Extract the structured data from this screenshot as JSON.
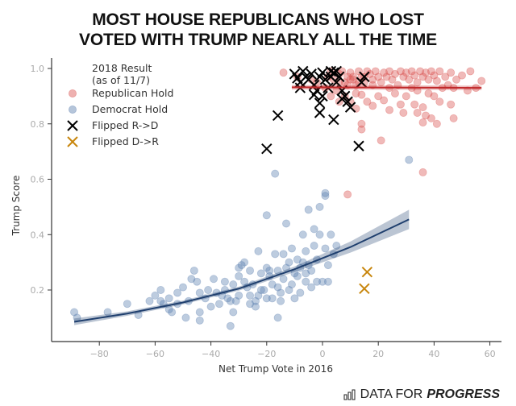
{
  "chart_data": {
    "type": "scatter",
    "title": "MOST HOUSE REPUBLICANS WHO LOST VOTED WITH TRUMP NEARLY ALL THE TIME",
    "title_lines": [
      "MOST HOUSE REPUBLICANS WHO LOST",
      "VOTED WITH TRUMP NEARLY ALL THE TIME"
    ],
    "xlabel": "Net Trump Vote in 2016",
    "ylabel": "Trump Score",
    "xlim": [
      -97,
      67
    ],
    "ylim": [
      0.015,
      1.03
    ],
    "x_ticks": [
      -80,
      -60,
      -40,
      -20,
      0,
      20,
      40,
      60
    ],
    "x_tick_labels": [
      "−80",
      "−60",
      "−40",
      "−20",
      "0",
      "20",
      "40",
      "60"
    ],
    "y_ticks": [
      0.2,
      0.4,
      0.6,
      0.8,
      1.0
    ],
    "y_tick_labels": [
      "0.2",
      "0.4",
      "0.6",
      "0.8",
      "1.0"
    ],
    "grid": false,
    "legend": {
      "placement": "top-left",
      "title_lines": [
        "2018 Result",
        "(as of 11/7)"
      ],
      "entries": [
        {
          "label": "Republican Hold",
          "marker": "circle",
          "color": "#d9534f"
        },
        {
          "label": "Democrat Hold",
          "marker": "circle",
          "color": "#5b7fae"
        },
        {
          "label": "Flipped R->D",
          "marker": "x",
          "color": "#000000"
        },
        {
          "label": "Flipped D->R",
          "marker": "x",
          "color": "#c8860d"
        }
      ]
    },
    "series": [
      {
        "name": "Republican Hold",
        "marker": "circle",
        "color": "#d9534f",
        "points": [
          [
            -14,
            0.985
          ],
          [
            -9,
            0.97
          ],
          [
            -4,
            0.96
          ],
          [
            -2,
            0.95
          ],
          [
            1,
            0.93
          ],
          [
            2,
            0.97
          ],
          [
            3,
            0.99
          ],
          [
            4,
            0.96
          ],
          [
            5,
            0.92
          ],
          [
            6,
            0.98
          ],
          [
            7,
            0.99
          ],
          [
            8,
            0.95
          ],
          [
            9,
            0.97
          ],
          [
            10,
            0.985
          ],
          [
            11,
            0.96
          ],
          [
            12,
            0.94
          ],
          [
            13,
            0.99
          ],
          [
            14,
            0.97
          ],
          [
            15,
            0.95
          ],
          [
            16,
            0.99
          ],
          [
            17,
            0.98
          ],
          [
            18,
            0.96
          ],
          [
            19,
            0.99
          ],
          [
            20,
            0.97
          ],
          [
            21,
            0.95
          ],
          [
            22,
            0.985
          ],
          [
            23,
            0.97
          ],
          [
            24,
            0.99
          ],
          [
            25,
            0.96
          ],
          [
            26,
            0.98
          ],
          [
            27,
            0.94
          ],
          [
            28,
            0.99
          ],
          [
            29,
            0.97
          ],
          [
            30,
            0.985
          ],
          [
            31,
            0.96
          ],
          [
            32,
            0.99
          ],
          [
            33,
            0.975
          ],
          [
            34,
            0.95
          ],
          [
            35,
            0.99
          ],
          [
            36,
            0.97
          ],
          [
            37,
            0.985
          ],
          [
            38,
            0.96
          ],
          [
            39,
            0.99
          ],
          [
            40,
            0.975
          ],
          [
            41,
            0.955
          ],
          [
            42,
            0.99
          ],
          [
            44,
            0.97
          ],
          [
            46,
            0.985
          ],
          [
            48,
            0.96
          ],
          [
            50,
            0.975
          ],
          [
            53,
            0.99
          ],
          [
            57,
            0.955
          ],
          [
            45,
            0.94
          ],
          [
            43,
            0.93
          ],
          [
            32,
            0.93
          ],
          [
            24,
            0.93
          ],
          [
            18,
            0.94
          ],
          [
            12,
            0.91
          ],
          [
            8,
            0.9
          ],
          [
            14,
            0.905
          ],
          [
            20,
            0.9
          ],
          [
            26,
            0.91
          ],
          [
            30,
            0.9
          ],
          [
            34,
            0.92
          ],
          [
            38,
            0.91
          ],
          [
            40,
            0.9
          ],
          [
            47,
            0.93
          ],
          [
            52,
            0.92
          ],
          [
            55,
            0.93
          ],
          [
            10,
            0.88
          ],
          [
            16,
            0.88
          ],
          [
            22,
            0.885
          ],
          [
            28,
            0.87
          ],
          [
            33,
            0.87
          ],
          [
            36,
            0.86
          ],
          [
            42,
            0.88
          ],
          [
            46,
            0.87
          ],
          [
            12,
            0.855
          ],
          [
            18,
            0.865
          ],
          [
            24,
            0.85
          ],
          [
            29,
            0.84
          ],
          [
            34,
            0.84
          ],
          [
            37,
            0.83
          ],
          [
            39,
            0.82
          ],
          [
            41,
            0.8
          ],
          [
            36,
            0.805
          ],
          [
            47,
            0.82
          ],
          [
            14,
            0.8
          ],
          [
            14,
            0.78
          ],
          [
            21,
            0.74
          ],
          [
            9,
            0.545
          ],
          [
            36,
            0.625
          ],
          [
            6,
            0.95
          ],
          [
            9,
            0.94
          ],
          [
            11,
            0.97
          ],
          [
            13,
            0.95
          ],
          [
            15,
            0.97
          ],
          [
            3,
            0.9
          ],
          [
            6,
            0.88
          ],
          [
            10,
            0.96
          ]
        ]
      },
      {
        "name": "Democrat Hold",
        "marker": "circle",
        "color": "#5b7fae",
        "points": [
          [
            -89,
            0.12
          ],
          [
            -88,
            0.1
          ],
          [
            -77,
            0.12
          ],
          [
            -70,
            0.15
          ],
          [
            -62,
            0.16
          ],
          [
            -58,
            0.2
          ],
          [
            -55,
            0.17
          ],
          [
            -52,
            0.15
          ],
          [
            -50,
            0.21
          ],
          [
            -48,
            0.16
          ],
          [
            -46,
            0.27
          ],
          [
            -45,
            0.23
          ],
          [
            -44,
            0.19
          ],
          [
            -42,
            0.17
          ],
          [
            -40,
            0.14
          ],
          [
            -38,
            0.19
          ],
          [
            -37,
            0.15
          ],
          [
            -35,
            0.2
          ],
          [
            -34,
            0.17
          ],
          [
            -32,
            0.22
          ],
          [
            -31,
            0.16
          ],
          [
            -30,
            0.18
          ],
          [
            -29,
            0.29
          ],
          [
            -28,
            0.23
          ],
          [
            -27,
            0.21
          ],
          [
            -26,
            0.27
          ],
          [
            -25,
            0.22
          ],
          [
            -24,
            0.14
          ],
          [
            -23,
            0.18
          ],
          [
            -22,
            0.26
          ],
          [
            -21,
            0.2
          ],
          [
            -20,
            0.17
          ],
          [
            -19,
            0.25
          ],
          [
            -18,
            0.22
          ],
          [
            -17,
            0.33
          ],
          [
            -16,
            0.27
          ],
          [
            -15,
            0.19
          ],
          [
            -14,
            0.24
          ],
          [
            -13,
            0.28
          ],
          [
            -12,
            0.3
          ],
          [
            -11,
            0.22
          ],
          [
            -10,
            0.26
          ],
          [
            -9,
            0.25
          ],
          [
            -8,
            0.19
          ],
          [
            -7,
            0.3
          ],
          [
            -6,
            0.23
          ],
          [
            -5,
            0.29
          ],
          [
            -4,
            0.27
          ],
          [
            -3,
            0.36
          ],
          [
            -2,
            0.31
          ],
          [
            -1,
            0.4
          ],
          [
            0,
            0.23
          ],
          [
            1,
            0.35
          ],
          [
            2,
            0.29
          ],
          [
            -60,
            0.18
          ],
          [
            -57,
            0.15
          ],
          [
            -55,
            0.13
          ],
          [
            -52,
            0.19
          ],
          [
            -49,
            0.1
          ],
          [
            -47,
            0.24
          ],
          [
            -44,
            0.12
          ],
          [
            -41,
            0.2
          ],
          [
            -39,
            0.24
          ],
          [
            -36,
            0.18
          ],
          [
            -33,
            0.16
          ],
          [
            -30,
            0.25
          ],
          [
            -28,
            0.3
          ],
          [
            -26,
            0.18
          ],
          [
            -24,
            0.16
          ],
          [
            -22,
            0.2
          ],
          [
            -20,
            0.28
          ],
          [
            -18,
            0.17
          ],
          [
            -16,
            0.21
          ],
          [
            -14,
            0.33
          ],
          [
            -12,
            0.2
          ],
          [
            -10,
            0.17
          ],
          [
            -8,
            0.28
          ],
          [
            -6,
            0.26
          ],
          [
            -4,
            0.21
          ],
          [
            -2,
            0.23
          ],
          [
            -33,
            0.07
          ],
          [
            -16,
            0.1
          ],
          [
            -7,
            0.4
          ],
          [
            -5,
            0.49
          ],
          [
            -1,
            0.5
          ],
          [
            1,
            0.54
          ],
          [
            1,
            0.55
          ],
          [
            -20,
            0.47
          ],
          [
            -13,
            0.44
          ],
          [
            -17,
            0.62
          ],
          [
            31,
            0.67
          ],
          [
            -66,
            0.11
          ],
          [
            -58,
            0.16
          ],
          [
            -54,
            0.12
          ],
          [
            -44,
            0.09
          ],
          [
            -35,
            0.23
          ],
          [
            -30,
            0.28
          ],
          [
            -23,
            0.34
          ],
          [
            -19,
            0.27
          ],
          [
            -11,
            0.35
          ],
          [
            -9,
            0.31
          ],
          [
            -3,
            0.42
          ],
          [
            3,
            0.4
          ],
          [
            4,
            0.33
          ],
          [
            5,
            0.36
          ],
          [
            -26,
            0.15
          ],
          [
            -32,
            0.12
          ],
          [
            -15,
            0.16
          ],
          [
            -6,
            0.34
          ],
          [
            2,
            0.23
          ]
        ]
      },
      {
        "name": "Flipped R->D",
        "marker": "x",
        "color": "#000000",
        "points": [
          [
            -20,
            0.71
          ],
          [
            -16,
            0.83
          ],
          [
            -10,
            0.98
          ],
          [
            -9,
            0.965
          ],
          [
            -8,
            0.95
          ],
          [
            -7,
            0.99
          ],
          [
            -6,
            0.97
          ],
          [
            -5,
            0.96
          ],
          [
            -4,
            0.98
          ],
          [
            -3,
            0.94
          ],
          [
            -2,
            0.92
          ],
          [
            -1,
            0.97
          ],
          [
            0,
            0.9
          ],
          [
            0,
            0.985
          ],
          [
            1,
            0.96
          ],
          [
            2,
            0.93
          ],
          [
            3,
            0.99
          ],
          [
            4,
            0.985
          ],
          [
            5,
            0.99
          ],
          [
            5,
            0.95
          ],
          [
            6,
            0.97
          ],
          [
            7,
            0.89
          ],
          [
            7,
            0.92
          ],
          [
            8,
            0.9
          ],
          [
            9,
            0.88
          ],
          [
            -8,
            0.93
          ],
          [
            -1,
            0.875
          ],
          [
            -1,
            0.84
          ],
          [
            4,
            0.815
          ],
          [
            13,
            0.72
          ],
          [
            14,
            0.95
          ],
          [
            15,
            0.97
          ],
          [
            3,
            0.97
          ],
          [
            -3,
            0.905
          ],
          [
            10,
            0.86
          ]
        ]
      },
      {
        "name": "Flipped D->R",
        "marker": "x",
        "color": "#c8860d",
        "points": [
          [
            16,
            0.265
          ],
          [
            15,
            0.205
          ]
        ]
      }
    ],
    "fits": [
      {
        "name": "Republican Hold fit",
        "color": "#c0282a",
        "x": [
          -11,
          57
        ],
        "y": [
          0.932,
          0.93
        ],
        "ci_halfwidth": [
          0.008,
          0.008
        ]
      },
      {
        "name": "Democrat Hold fit",
        "color": "#1f3f6e",
        "x": [
          -89,
          -70,
          -50,
          -30,
          -10,
          10,
          31
        ],
        "y": [
          0.085,
          0.115,
          0.155,
          0.205,
          0.275,
          0.355,
          0.455
        ],
        "ci_halfwidth": [
          0.012,
          0.008,
          0.007,
          0.007,
          0.01,
          0.02,
          0.035
        ]
      }
    ]
  },
  "brand": {
    "prefix": "DATA FOR",
    "emphasis": "PROGRESS"
  }
}
